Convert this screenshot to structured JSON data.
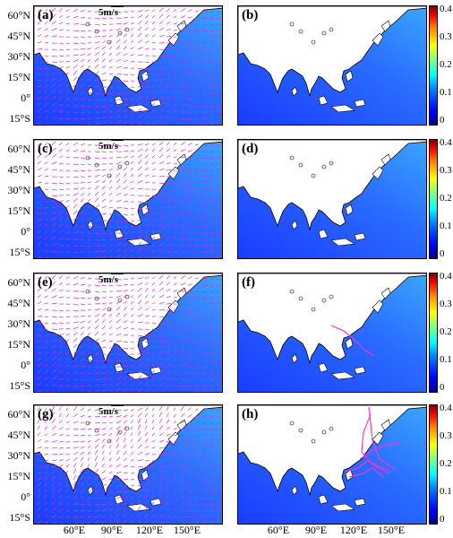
{
  "panels": [
    {
      "label": "(a)",
      "scale_label": "5m/s",
      "vectors": true,
      "tracks": false
    },
    {
      "label": "(b)",
      "vectors": false,
      "tracks": false
    },
    {
      "label": "(c)",
      "scale_label": "5m/s",
      "vectors": true,
      "tracks": false
    },
    {
      "label": "(d)",
      "vectors": false,
      "tracks": false
    },
    {
      "label": "(e)",
      "scale_label": "5m/s",
      "vectors": true,
      "tracks": false
    },
    {
      "label": "(f)",
      "vectors": false,
      "tracks": true
    },
    {
      "label": "(g)",
      "scale_label": "5m/s",
      "vectors": true,
      "tracks": false
    },
    {
      "label": "(h)",
      "vectors": false,
      "tracks": true
    }
  ],
  "lat_ticks": [
    "60°N",
    "45°N",
    "30°N",
    "15°N",
    "0°",
    "15°S"
  ],
  "lon_ticks": [
    "60°E",
    "90°E",
    "120°E",
    "150°E"
  ],
  "colorbar_ticks": [
    "0.4",
    "0.3",
    "0.2",
    "0.1",
    "0"
  ],
  "colors": {
    "vector": "#cc33cc",
    "track": "#ff33cc",
    "ocean_low": "#1a3cff",
    "ocean_high": "#3aa6ff",
    "land": "#ffffff"
  }
}
